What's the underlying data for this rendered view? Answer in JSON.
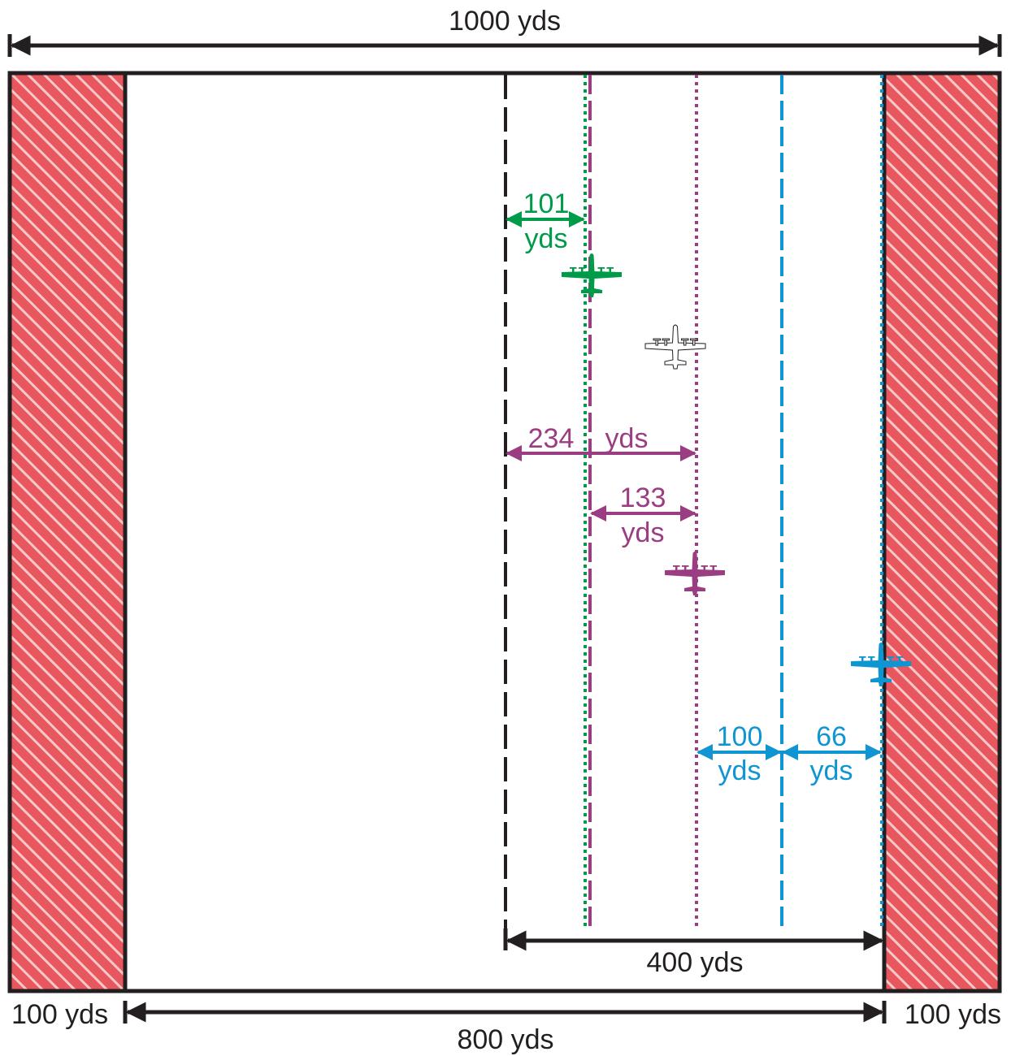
{
  "labels": {
    "total_width": "1000 yds",
    "left_zone": "100 yds",
    "right_zone": "100 yds",
    "usable_width": "800 yds",
    "black_span": "400 yds",
    "green_num": "101",
    "green_unit": "yds",
    "magenta_total": "234",
    "magenta_total_unit": "yds",
    "magenta_num": "133",
    "magenta_unit": "yds",
    "blue_a_num": "100",
    "blue_a_unit": "yds",
    "blue_b_num": "66",
    "blue_b_unit": "yds"
  },
  "colors": {
    "outline": "#231f20",
    "hazard_fill": "#e8575e",
    "hazard_stripe": "#f6c8c8",
    "green": "#009b48",
    "magenta": "#9b3d82",
    "blue": "#0f96d2",
    "outline_plane": "#ffffff"
  },
  "icons": {
    "aircraft": "four-engine-aircraft-icon",
    "arrow": "double-headed-arrow"
  }
}
